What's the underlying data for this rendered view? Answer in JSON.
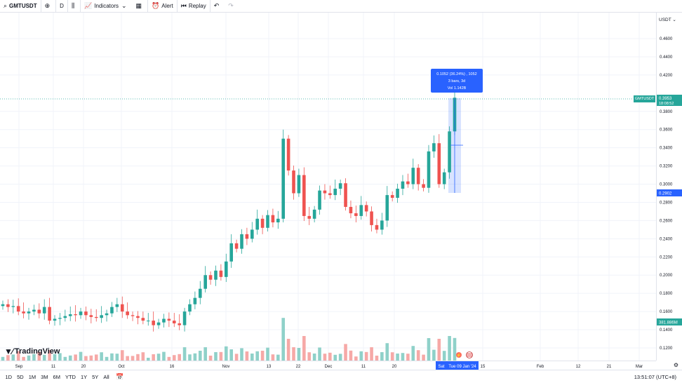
{
  "toolbar": {
    "symbol": "GMTUSDT",
    "interval": "D",
    "indicators_label": "Indicators",
    "alert_label": "Alert",
    "replay_label": "Replay"
  },
  "price_axis": {
    "currency": "USDT",
    "ticks": [
      "0.4600",
      "0.4400",
      "0.4200",
      "0.3800",
      "0.3600",
      "0.3400",
      "0.3200",
      "0.3000",
      "0.2800",
      "0.2600",
      "0.2400",
      "0.2200",
      "0.2000",
      "0.1800",
      "0.1600",
      "0.1400",
      "0.1200"
    ],
    "symbol_tag": "GMTUSDT",
    "last_price": "0.3953",
    "countdown": "18:08:52",
    "range_low": "0.2902",
    "volume_tag": "381.886M"
  },
  "time_axis": {
    "labels": [
      "Sep",
      "11",
      "20",
      "Oct",
      "16",
      "Nov",
      "13",
      "22",
      "Dec",
      "11",
      "20",
      "15",
      "Feb",
      "12",
      "21",
      "Mar"
    ],
    "crosshair_left": "Sat",
    "crosshair_date": "Tue 09 Jan '24"
  },
  "measure_tooltip": {
    "line1": "0.1052 (36.24%) , 1052",
    "line2": "3 bars, 3d",
    "line3": "Vol 1.142B"
  },
  "brand": "TradingView",
  "bottom": {
    "ranges": [
      "1D",
      "5D",
      "1M",
      "3M",
      "6M",
      "YTD",
      "1Y",
      "5Y",
      "All"
    ],
    "clock": "13:51:07 (UTC+8)"
  },
  "colors": {
    "up": "#26a69a",
    "down": "#ef5350",
    "up_vol": "#8fd1c9",
    "down_vol": "#f6a9a7",
    "accent": "#2962ff"
  },
  "chart_data": {
    "type": "candlestick",
    "symbol": "GMTUSDT",
    "interval": "1D",
    "y_range": [
      0.11,
      0.49
    ],
    "approx_close_series": [
      0.168,
      0.165,
      0.166,
      0.16,
      0.158,
      0.16,
      0.162,
      0.158,
      0.165,
      0.15,
      0.152,
      0.153,
      0.155,
      0.157,
      0.156,
      0.16,
      0.156,
      0.154,
      0.153,
      0.156,
      0.158,
      0.165,
      0.168,
      0.16,
      0.156,
      0.155,
      0.153,
      0.15,
      0.15,
      0.145,
      0.148,
      0.152,
      0.15,
      0.147,
      0.145,
      0.16,
      0.168,
      0.175,
      0.185,
      0.2,
      0.195,
      0.205,
      0.198,
      0.215,
      0.235,
      0.229,
      0.245,
      0.24,
      0.25,
      0.262,
      0.252,
      0.266,
      0.258,
      0.262,
      0.35,
      0.315,
      0.29,
      0.31,
      0.265,
      0.262,
      0.272,
      0.293,
      0.29,
      0.288,
      0.295,
      0.301,
      0.275,
      0.268,
      0.265,
      0.277,
      0.27,
      0.255,
      0.25,
      0.26,
      0.288,
      0.285,
      0.295,
      0.303,
      0.3,
      0.318,
      0.3,
      0.296,
      0.336,
      0.345,
      0.3,
      0.313,
      0.358,
      0.395
    ],
    "measurement": {
      "change": "0.1052",
      "percent": "36.24%",
      "bars": 3,
      "volume": "1.142B"
    }
  }
}
